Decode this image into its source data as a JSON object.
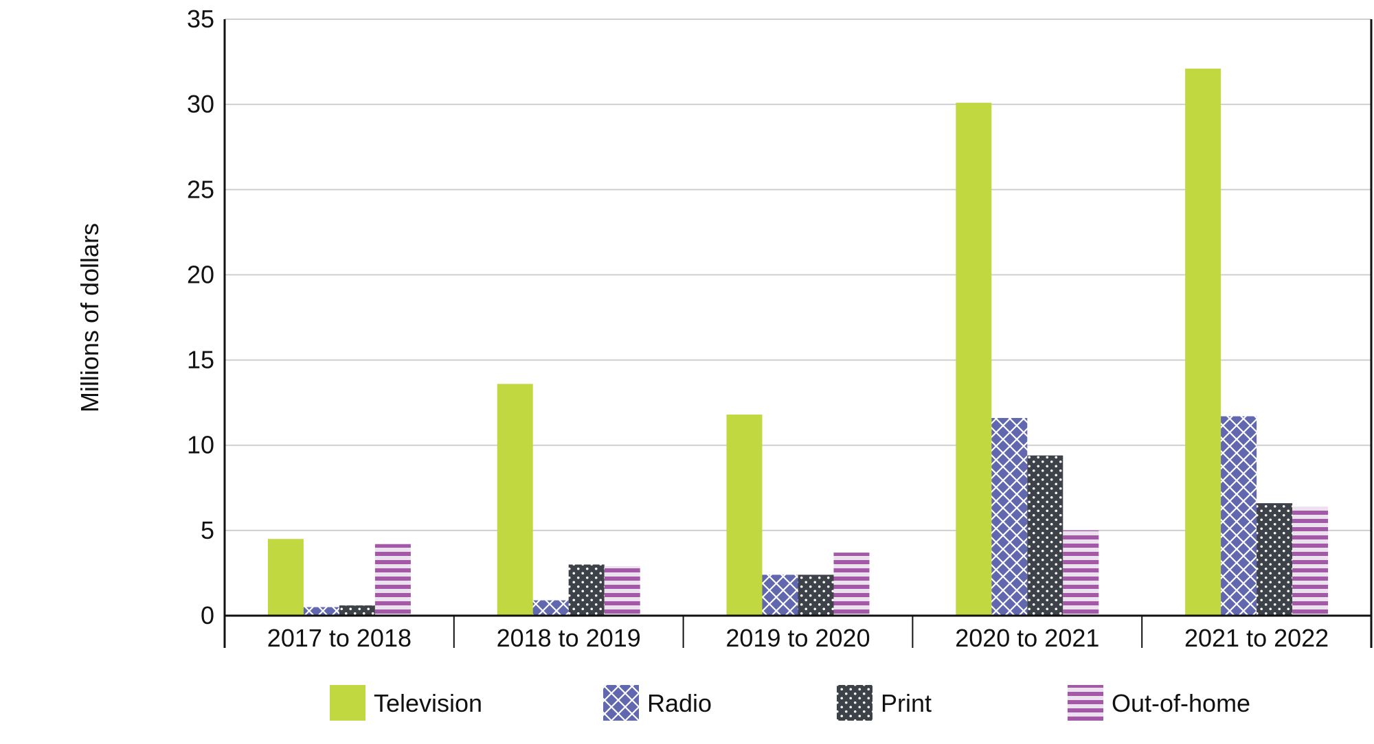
{
  "chart_data": {
    "type": "bar",
    "title": "",
    "xlabel": "",
    "ylabel": "Millions of dollars",
    "ylim": [
      0,
      35
    ],
    "yticks": [
      0,
      5,
      10,
      15,
      20,
      25,
      30,
      35
    ],
    "grid": true,
    "legend_position": "bottom",
    "categories": [
      "2017 to 2018",
      "2018 to 2019",
      "2019 to 2020",
      "2020 to 2021",
      "2021 to 2022"
    ],
    "series": [
      {
        "name": "Television",
        "values": [
          4.5,
          13.6,
          11.8,
          30.1,
          32.1
        ],
        "color": "#c2d840",
        "pattern": "solid"
      },
      {
        "name": "Radio",
        "values": [
          0.5,
          0.9,
          2.4,
          11.6,
          11.7
        ],
        "color": "#6168b0",
        "pattern": "crosshatch"
      },
      {
        "name": "Print",
        "values": [
          0.6,
          3.0,
          2.4,
          9.4,
          6.6
        ],
        "color": "#3d4148",
        "pattern": "dots"
      },
      {
        "name": "Out-of-home",
        "values": [
          4.2,
          2.9,
          3.7,
          5.0,
          6.4
        ],
        "color": "#a35aa6",
        "pattern": "horizontal-stripes"
      }
    ]
  }
}
